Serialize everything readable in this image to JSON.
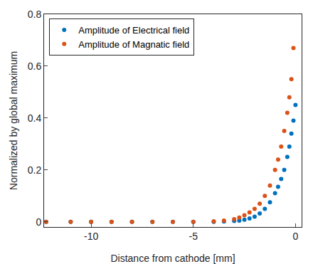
{
  "chart_data": {
    "type": "scatter",
    "x_label": "Distance from cathode [mm]",
    "y_label": "Normalized by global maximum",
    "xlim": [
      -12.3,
      0.3
    ],
    "xticks": [
      -10,
      -5,
      0
    ],
    "ylim": [
      -0.02,
      0.8
    ],
    "yticks": [
      0,
      0.2,
      0.4,
      0.6,
      0.8
    ],
    "grid": false,
    "legend": "upper left",
    "marker": "circle",
    "series": [
      {
        "name": "Amplitude of Electrical field",
        "color": "#0072BD",
        "x": [
          -12.2,
          -11,
          -10,
          -9,
          -8,
          -7,
          -6,
          -5,
          -4,
          -3.5,
          -3,
          -2.75,
          -2.5,
          -2.25,
          -2,
          -1.75,
          -1.5,
          -1.25,
          -1,
          -0.85,
          -0.7,
          -0.55,
          -0.4,
          -0.3,
          -0.2,
          -0.1,
          0
        ],
        "values": [
          0,
          0,
          0,
          0,
          0,
          0,
          0,
          0,
          0,
          0.001,
          0.003,
          0.005,
          0.008,
          0.013,
          0.02,
          0.032,
          0.05,
          0.075,
          0.11,
          0.135,
          0.165,
          0.2,
          0.25,
          0.29,
          0.34,
          0.39,
          0.45
        ]
      },
      {
        "name": "Amplitude of Magnatic field",
        "color": "#D95319",
        "x": [
          -12.2,
          -11,
          -10,
          -9,
          -8,
          -7,
          -6,
          -5,
          -4,
          -3.5,
          -3,
          -2.75,
          -2.5,
          -2.25,
          -2,
          -1.75,
          -1.5,
          -1.25,
          -1,
          -0.85,
          -0.7,
          -0.55,
          -0.4,
          -0.3,
          -0.2,
          -0.1
        ],
        "values": [
          0,
          0,
          0,
          0,
          0,
          0,
          0,
          0,
          0.002,
          0.005,
          0.01,
          0.016,
          0.025,
          0.036,
          0.05,
          0.07,
          0.1,
          0.14,
          0.2,
          0.24,
          0.29,
          0.35,
          0.42,
          0.48,
          0.55,
          0.67
        ]
      }
    ]
  }
}
